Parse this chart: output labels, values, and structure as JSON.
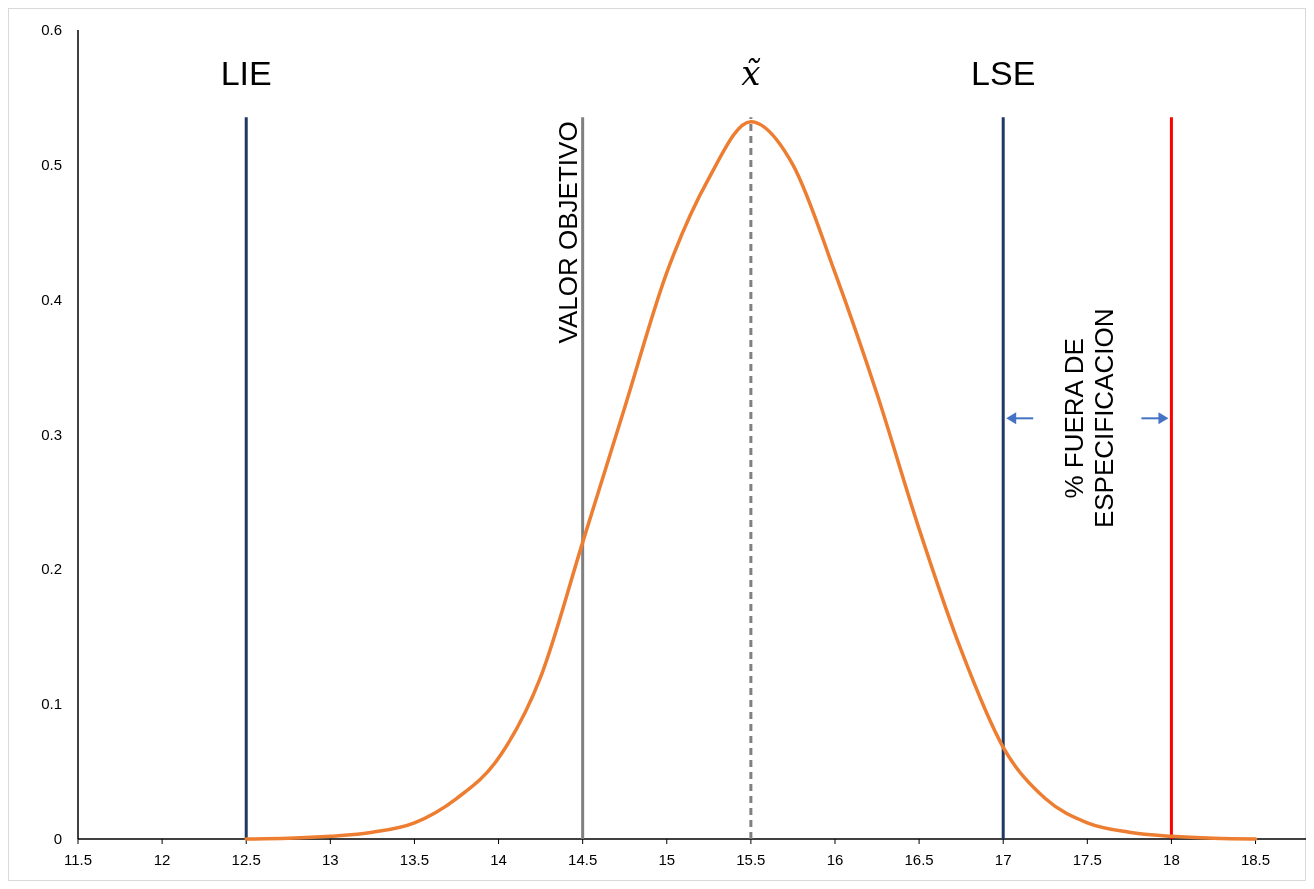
{
  "chart_data": {
    "type": "line",
    "x": [
      12.5,
      12.75,
      13,
      13.25,
      13.5,
      13.75,
      14,
      14.25,
      14.5,
      14.75,
      15,
      15.25,
      15.5,
      15.75,
      16,
      16.25,
      16.5,
      16.75,
      17,
      17.25,
      17.5,
      17.75,
      18,
      18.25,
      18.5
    ],
    "series": [
      {
        "color": "#ed7d31",
        "values": [
          0,
          0.0005,
          0.002,
          0.005,
          0.012,
          0.03,
          0.06,
          0.12,
          0.22,
          0.32,
          0.42,
          0.49,
          0.532,
          0.5,
          0.42,
          0.33,
          0.23,
          0.14,
          0.068,
          0.03,
          0.012,
          0.005,
          0.002,
          0.0005,
          0
        ]
      }
    ],
    "xlim": [
      11.5,
      18.8
    ],
    "xticks": [
      11.5,
      12,
      12.5,
      13,
      13.5,
      14,
      14.5,
      15,
      15.5,
      16,
      16.5,
      17,
      17.5,
      18,
      18.5
    ],
    "ylim": [
      0,
      0.6
    ],
    "yticks": [
      0,
      0.1,
      0.2,
      0.3,
      0.4,
      0.5,
      0.6
    ],
    "grid": false,
    "marker": "none",
    "line_style": "solid",
    "ref_lines": [
      {
        "axis": "x",
        "value": 12.5,
        "label": "LIE",
        "color": "#203864"
      },
      {
        "axis": "x",
        "value": 14.5,
        "label": "VALOR OBJETIVO",
        "color": "#808080"
      },
      {
        "axis": "x",
        "value": 15.5,
        "label": "x̃",
        "color": "#808080",
        "line_style": "dashed"
      },
      {
        "axis": "x",
        "value": 17,
        "label": "LSE",
        "color": "#203864"
      },
      {
        "axis": "x",
        "value": 18,
        "color": "#ff0000"
      }
    ],
    "annotations": [
      "% FUERA DE ESPECIFICACION"
    ]
  }
}
